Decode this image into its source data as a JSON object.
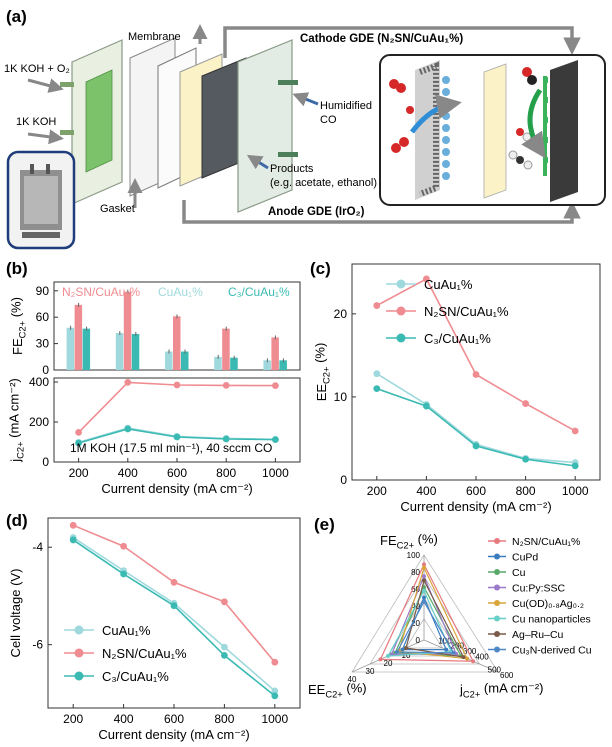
{
  "panel_labels": {
    "a": "(a)",
    "b": "(b)",
    "c": "(c)",
    "d": "(d)",
    "e": "(e)"
  },
  "schematic": {
    "cathode_label": "Cathode GDE (N₂SN/CuAu₁%)",
    "anode_label": "Anode GDE (IrO₂)",
    "membrane": "Membrane",
    "koh_o2": "1K KOH + O₂",
    "koh": "1K KOH",
    "humidified_1": "Humidified",
    "humidified_2": "CO",
    "products_1": "Products",
    "products_2": "(e.g. acetate, ethanol)",
    "gasket": "Gasket"
  },
  "colors": {
    "cuau": "#9fd9dd",
    "n2sn": "#ef8c91",
    "c3": "#3bbab3",
    "frame": "#1f3d7a",
    "arrow": "#888888"
  },
  "chart_data": [
    {
      "id": "b-top",
      "type": "bar",
      "categories": [
        "200",
        "400",
        "600",
        "800",
        "1000"
      ],
      "ylabel": "FE_C2+ (%)",
      "ylim": [
        0,
        100
      ],
      "yticks": [
        "0",
        "30",
        "60",
        "90"
      ],
      "series": [
        {
          "name": "N₂SN/CuAu₁%",
          "values": [
            74,
            89,
            61,
            47,
            37
          ]
        },
        {
          "name": "CuAu₁%",
          "values": [
            48,
            42,
            21,
            15,
            11
          ]
        },
        {
          "name": "C₃/CuAu₁%",
          "values": [
            47,
            41,
            21,
            14,
            11
          ]
        }
      ]
    },
    {
      "id": "b-bottom",
      "type": "line",
      "x": [
        200,
        400,
        600,
        800,
        1000
      ],
      "xlabel": "Current density (mA cm⁻²)",
      "ylabel": "j_C2+ (mA cm⁻²)",
      "ylim": [
        0,
        420
      ],
      "yticks": [
        "0",
        "200",
        "400"
      ],
      "xticks": [
        "200",
        "400",
        "600",
        "800",
        "1000"
      ],
      "annotation": "1M KOH (17.5 ml min⁻¹), 40 sccm CO",
      "series": [
        {
          "name": "N₂SN/CuAu₁%",
          "values": [
            148,
            398,
            385,
            383,
            382
          ]
        },
        {
          "name": "CuAu₁%",
          "values": [
            98,
            170,
            128,
            118,
            113
          ]
        },
        {
          "name": "C₃/CuAu₁%",
          "values": [
            95,
            165,
            125,
            115,
            112
          ]
        }
      ]
    },
    {
      "id": "c",
      "type": "line",
      "x": [
        200,
        400,
        600,
        800,
        1000
      ],
      "xlabel": "Current density (mA cm⁻²)",
      "ylabel": "EE_C2+ (%)",
      "ylim": [
        0,
        26
      ],
      "yticks": [
        "0",
        "10",
        "20"
      ],
      "xticks": [
        "200",
        "400",
        "600",
        "800",
        "1000"
      ],
      "legend": [
        "CuAu₁%",
        "N₂SN/CuAu₁%",
        "C₃/CuAu₁%"
      ],
      "series": [
        {
          "name": "CuAu₁%",
          "values": [
            12.8,
            9.1,
            4.3,
            2.6,
            2.1
          ]
        },
        {
          "name": "N₂SN/CuAu₁%",
          "values": [
            21,
            24.2,
            12.7,
            9.2,
            5.9
          ]
        },
        {
          "name": "C₃/CuAu₁%",
          "values": [
            11,
            8.9,
            4.1,
            2.5,
            1.7
          ]
        }
      ]
    },
    {
      "id": "d",
      "type": "line",
      "x": [
        200,
        400,
        600,
        800,
        1000
      ],
      "xlabel": "Current density (mA cm⁻²)",
      "ylabel": "Cell voltage (V)",
      "ylim": [
        -7.3,
        -3.4
      ],
      "yticks": [
        "-4",
        "-6"
      ],
      "xticks": [
        "200",
        "400",
        "600",
        "800",
        "1000"
      ],
      "legend": [
        "CuAu₁%",
        "N₂SN/CuAu₁%",
        "C₃/CuAu₁%"
      ],
      "series": [
        {
          "name": "CuAu₁%",
          "values": [
            -3.8,
            -4.48,
            -5.15,
            -6.05,
            -6.95
          ]
        },
        {
          "name": "N₂SN/CuAu₁%",
          "values": [
            -3.55,
            -3.98,
            -4.72,
            -5.12,
            -6.36
          ]
        },
        {
          "name": "C₃/CuAu₁%",
          "values": [
            -3.85,
            -4.55,
            -5.2,
            -6.22,
            -7.05
          ]
        }
      ]
    },
    {
      "id": "e",
      "type": "radar",
      "axes": [
        "FE_C2+ (%)",
        "EE_C2+ (%)",
        "j_C2+ (mA cm⁻²)"
      ],
      "fe_ticks": [
        "100",
        "80",
        "60",
        "40",
        "20",
        "0"
      ],
      "ee_ticks": [
        "40",
        "30",
        "20",
        "10"
      ],
      "j_ticks": [
        "100",
        "200",
        "300",
        "400",
        "500",
        "600"
      ],
      "series": [
        {
          "name": "N₂SN/CuAu₁%",
          "color": "#e8797e",
          "fe": 89,
          "ee": 24.2,
          "j": 398
        },
        {
          "name": "CuPd",
          "color": "#3b7dbf",
          "fe": 50,
          "ee": 12,
          "j": 180
        },
        {
          "name": "Cu",
          "color": "#5aa86b",
          "fe": 62,
          "ee": 16,
          "j": 300
        },
        {
          "name": "Cu:Py:SSC",
          "color": "#9a7ac9",
          "fe": 75,
          "ee": 18,
          "j": 260
        },
        {
          "name": "Cu(OD)₀.₈Ag₀.₂",
          "color": "#d8a53a",
          "fe": 85,
          "ee": 14,
          "j": 350
        },
        {
          "name": "Cu nanoparticles",
          "color": "#67cfc8",
          "fe": 58,
          "ee": 20,
          "j": 220
        },
        {
          "name": "Ag–Ru–Cu",
          "color": "#7a5a48",
          "fe": 70,
          "ee": 10,
          "j": 320
        },
        {
          "name": "Cu₃N-derived Cu",
          "color": "#4f86c6",
          "fe": 45,
          "ee": 15,
          "j": 240
        }
      ]
    }
  ]
}
